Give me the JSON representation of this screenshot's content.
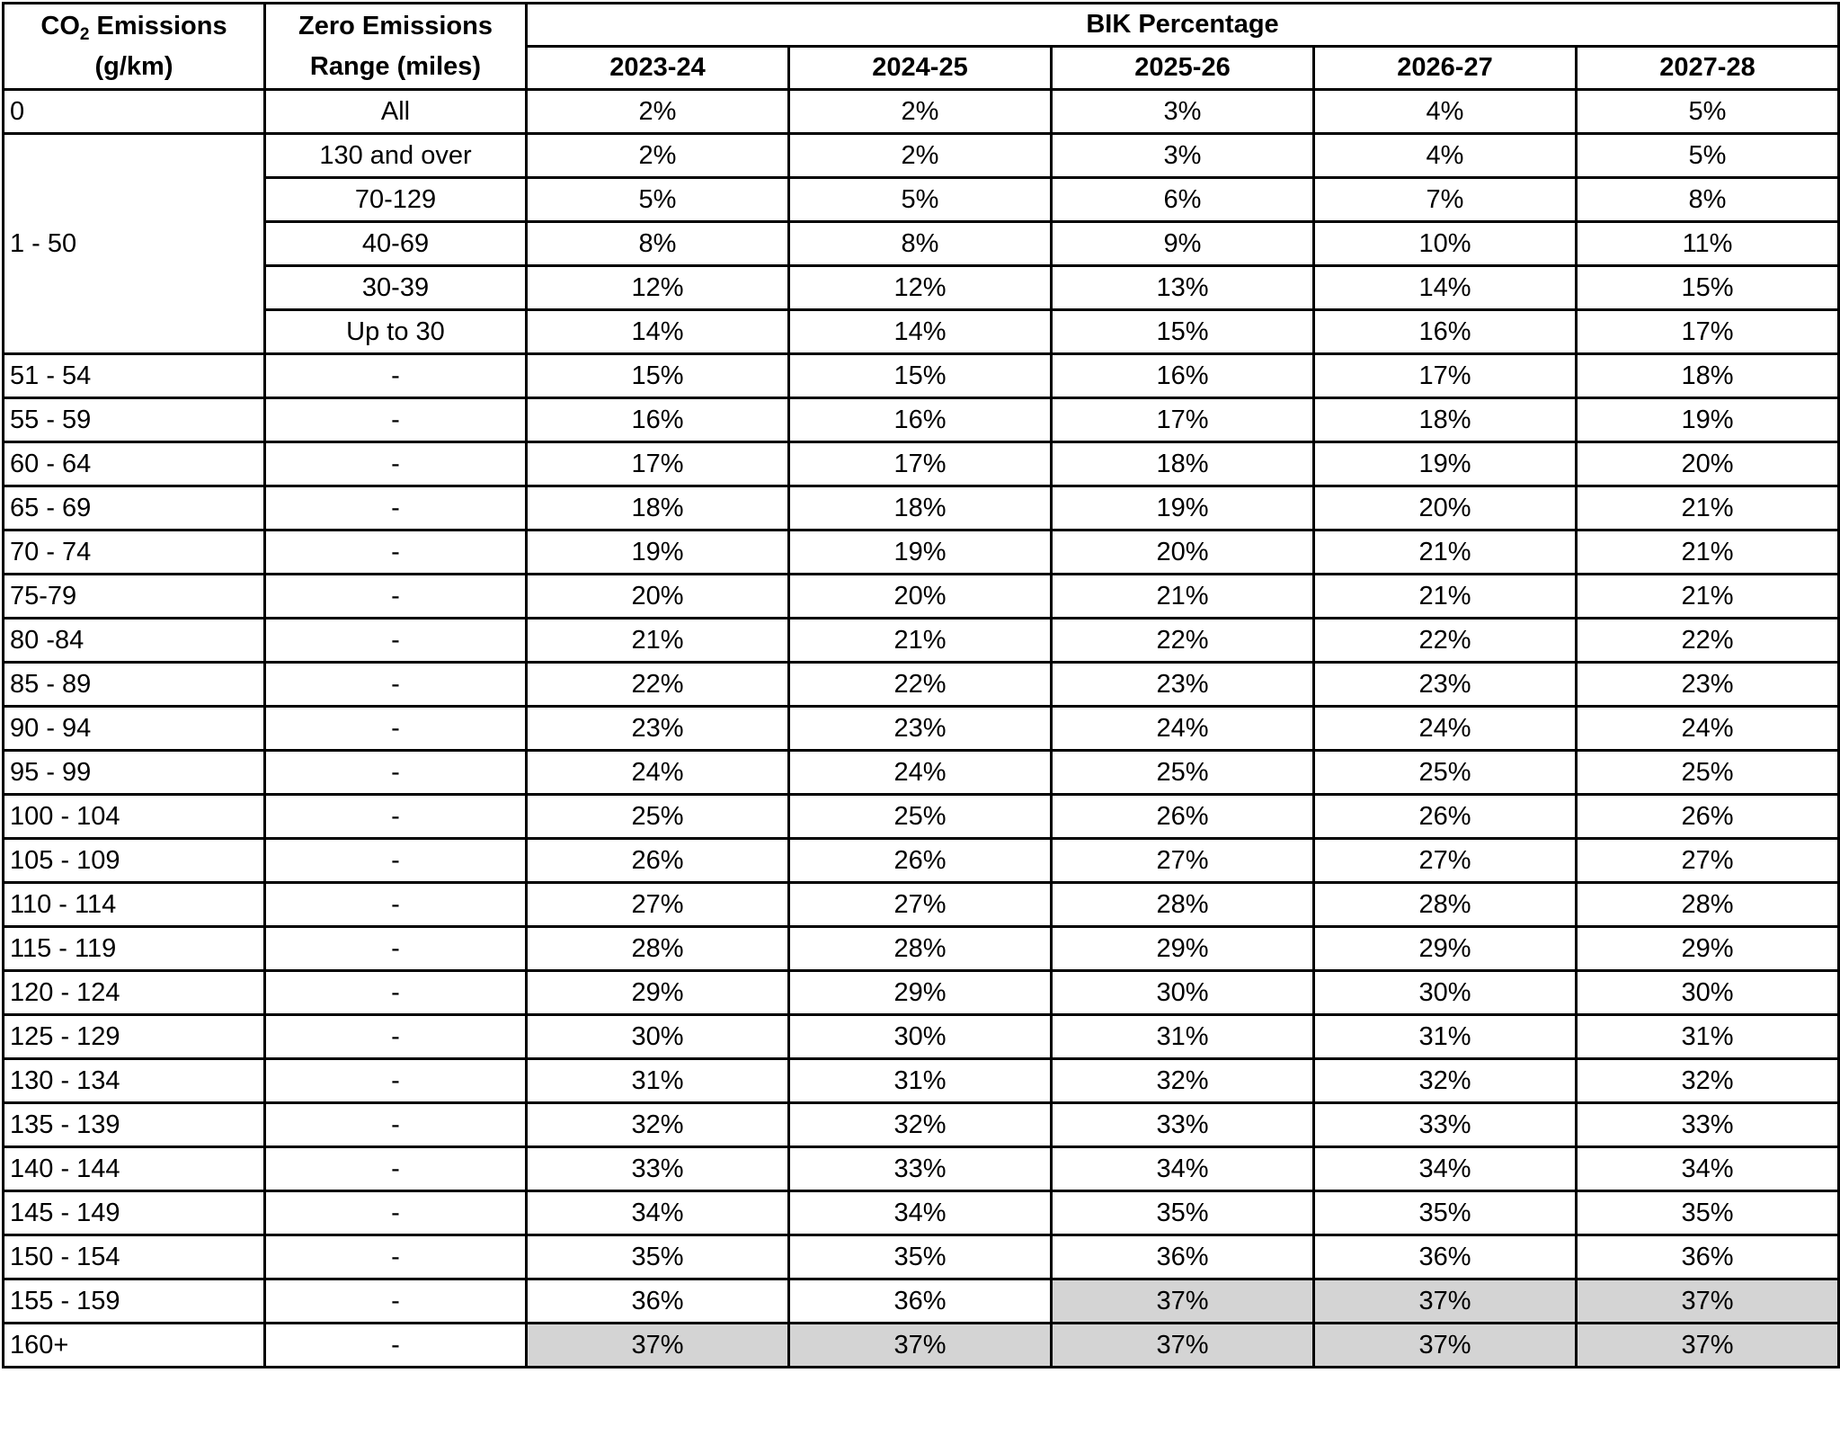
{
  "header": {
    "co2_label_prefix": "CO",
    "co2_label_sub": "2",
    "co2_label_suffix": " Emissions",
    "co2_unit": "(g/km)",
    "range_label_line1": "Zero Emissions",
    "range_label_line2": "Range (miles)",
    "bik_label": "BIK Percentage",
    "years": [
      "2023-24",
      "2024-25",
      "2025-26",
      "2026-27",
      "2027-28"
    ]
  },
  "rows": [
    {
      "co2": "0",
      "range": "All",
      "values": [
        "2%",
        "2%",
        "3%",
        "4%",
        "5%"
      ]
    },
    {
      "co2": "1 - 50",
      "range": "130 and over",
      "values": [
        "2%",
        "2%",
        "3%",
        "4%",
        "5%"
      ]
    },
    {
      "co2": "",
      "range": "70-129",
      "values": [
        "5%",
        "5%",
        "6%",
        "7%",
        "8%"
      ]
    },
    {
      "co2": "",
      "range": "40-69",
      "values": [
        "8%",
        "8%",
        "9%",
        "10%",
        "11%"
      ]
    },
    {
      "co2": "",
      "range": "30-39",
      "values": [
        "12%",
        "12%",
        "13%",
        "14%",
        "15%"
      ]
    },
    {
      "co2": "",
      "range": "Up to 30",
      "values": [
        "14%",
        "14%",
        "15%",
        "16%",
        "17%"
      ]
    },
    {
      "co2": "51 - 54",
      "range": "-",
      "values": [
        "15%",
        "15%",
        "16%",
        "17%",
        "18%"
      ]
    },
    {
      "co2": "55 - 59",
      "range": "-",
      "values": [
        "16%",
        "16%",
        "17%",
        "18%",
        "19%"
      ]
    },
    {
      "co2": "60 - 64",
      "range": "-",
      "values": [
        "17%",
        "17%",
        "18%",
        "19%",
        "20%"
      ]
    },
    {
      "co2": "65 - 69",
      "range": "-",
      "values": [
        "18%",
        "18%",
        "19%",
        "20%",
        "21%"
      ]
    },
    {
      "co2": "70 - 74",
      "range": "-",
      "values": [
        "19%",
        "19%",
        "20%",
        "21%",
        "21%"
      ]
    },
    {
      "co2": "75-79",
      "range": "-",
      "values": [
        "20%",
        "20%",
        "21%",
        "21%",
        "21%"
      ]
    },
    {
      "co2": "80 -84",
      "range": "-",
      "values": [
        "21%",
        "21%",
        "22%",
        "22%",
        "22%"
      ]
    },
    {
      "co2": "85 - 89",
      "range": "-",
      "values": [
        "22%",
        "22%",
        "23%",
        "23%",
        "23%"
      ]
    },
    {
      "co2": "90 - 94",
      "range": "-",
      "values": [
        "23%",
        "23%",
        "24%",
        "24%",
        "24%"
      ]
    },
    {
      "co2": "95 - 99",
      "range": "-",
      "values": [
        "24%",
        "24%",
        "25%",
        "25%",
        "25%"
      ]
    },
    {
      "co2": "100 - 104",
      "range": "-",
      "values": [
        "25%",
        "25%",
        "26%",
        "26%",
        "26%"
      ]
    },
    {
      "co2": "105 - 109",
      "range": "-",
      "values": [
        "26%",
        "26%",
        "27%",
        "27%",
        "27%"
      ]
    },
    {
      "co2": "110 - 114",
      "range": "-",
      "values": [
        "27%",
        "27%",
        "28%",
        "28%",
        "28%"
      ]
    },
    {
      "co2": "115 - 119",
      "range": "-",
      "values": [
        "28%",
        "28%",
        "29%",
        "29%",
        "29%"
      ]
    },
    {
      "co2": "120 - 124",
      "range": "-",
      "values": [
        "29%",
        "29%",
        "30%",
        "30%",
        "30%"
      ]
    },
    {
      "co2": "125 - 129",
      "range": "-",
      "values": [
        "30%",
        "30%",
        "31%",
        "31%",
        "31%"
      ]
    },
    {
      "co2": "130 - 134",
      "range": "-",
      "values": [
        "31%",
        "31%",
        "32%",
        "32%",
        "32%"
      ]
    },
    {
      "co2": "135 - 139",
      "range": "-",
      "values": [
        "32%",
        "32%",
        "33%",
        "33%",
        "33%"
      ]
    },
    {
      "co2": "140 - 144",
      "range": "-",
      "values": [
        "33%",
        "33%",
        "34%",
        "34%",
        "34%"
      ]
    },
    {
      "co2": "145 - 149",
      "range": "-",
      "values": [
        "34%",
        "34%",
        "35%",
        "35%",
        "35%"
      ]
    },
    {
      "co2": "150 - 154",
      "range": "-",
      "values": [
        "35%",
        "35%",
        "36%",
        "36%",
        "36%"
      ]
    },
    {
      "co2": "155 - 159",
      "range": "-",
      "values": [
        "36%",
        "36%",
        "37%",
        "37%",
        "37%"
      ]
    },
    {
      "co2": "160+",
      "range": "-",
      "values": [
        "37%",
        "37%",
        "37%",
        "37%",
        "37%"
      ]
    }
  ],
  "highlight_color": "#d4d4d4",
  "highlight": [
    [],
    [],
    [],
    [],
    [],
    [],
    [],
    [],
    [],
    [],
    [],
    [],
    [],
    [],
    [],
    [],
    [],
    [],
    [],
    [],
    [],
    [],
    [],
    [],
    [],
    [],
    [],
    [
      false,
      false,
      true,
      true,
      true
    ],
    [
      true,
      true,
      true,
      true,
      true
    ]
  ]
}
